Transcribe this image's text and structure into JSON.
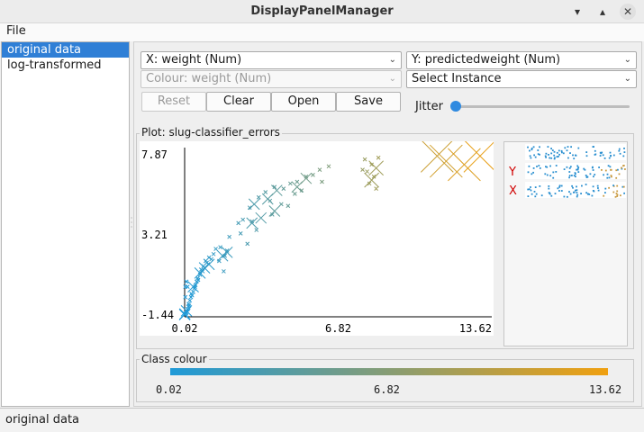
{
  "window": {
    "title": "DisplayPanelManager"
  },
  "menu": {
    "file": "File"
  },
  "datasets": [
    {
      "label": "original data",
      "selected": true
    },
    {
      "label": "log-transformed",
      "selected": false
    }
  ],
  "controls": {
    "x_axis": "X: weight (Num)",
    "y_axis": "Y: predictedweight (Num)",
    "colour": "Colour: weight (Num)",
    "instance": "Select Instance",
    "reset": "Reset",
    "clear": "Clear",
    "open": "Open",
    "save": "Save",
    "jitter": "Jitter",
    "jitter_value": 0
  },
  "plot": {
    "title": "Plot: slug-classifier_errors"
  },
  "chart_data": {
    "type": "scatter",
    "title": "Plot: slug-classifier_errors",
    "xlabel": "weight",
    "ylabel": "predictedweight",
    "xlim": [
      0.02,
      13.62
    ],
    "ylim": [
      -1.44,
      7.87
    ],
    "x_ticks": [
      "0.02",
      "6.82",
      "13.62"
    ],
    "y_ticks": [
      "7.87",
      "3.21",
      "-1.44"
    ],
    "colour_scale": {
      "low": "#1f9ad8",
      "high": "#f0a010"
    },
    "series": [
      {
        "marker": "x",
        "points": [
          [
            0.02,
            -1.41
          ],
          [
            0.05,
            -1.39
          ],
          [
            0.08,
            -1.35
          ],
          [
            0.1,
            -1.3
          ],
          [
            0.12,
            -1.22
          ],
          [
            0.15,
            -1.1
          ],
          [
            0.18,
            -0.95
          ],
          [
            0.2,
            -0.8
          ],
          [
            0.25,
            -0.6
          ],
          [
            0.3,
            -0.4
          ],
          [
            0.35,
            -0.3
          ],
          [
            0.4,
            -0.1
          ],
          [
            0.45,
            0.1
          ],
          [
            0.5,
            0.3
          ],
          [
            0.55,
            0.5
          ],
          [
            0.6,
            0.7
          ],
          [
            0.7,
            0.9
          ],
          [
            0.75,
            1.2
          ],
          [
            0.85,
            1.4
          ],
          [
            1.0,
            1.6
          ],
          [
            1.2,
            1.8
          ],
          [
            1.3,
            2.1
          ],
          [
            1.4,
            2.4
          ],
          [
            1.1,
            1.9
          ],
          [
            0.95,
            1.7
          ],
          [
            1.6,
            2.5
          ],
          [
            1.9,
            2.3
          ],
          [
            2.0,
            3.1
          ],
          [
            2.4,
            3.9
          ],
          [
            2.6,
            4.1
          ],
          [
            3.0,
            4.0
          ],
          [
            2.9,
            4.8
          ],
          [
            3.3,
            5.4
          ],
          [
            3.6,
            5.7
          ],
          [
            4.0,
            6.0
          ],
          [
            4.4,
            5.9
          ],
          [
            4.7,
            6.2
          ],
          [
            5.0,
            6.3
          ],
          [
            5.4,
            6.6
          ],
          [
            5.7,
            6.7
          ],
          [
            6.0,
            7.0
          ],
          [
            6.4,
            7.2
          ],
          [
            0.22,
            -0.9
          ],
          [
            0.32,
            -0.2
          ],
          [
            0.48,
            0.2
          ],
          [
            0.62,
            0.6
          ],
          [
            0.82,
            1.1
          ],
          [
            1.55,
            1.7
          ],
          [
            1.75,
            1.1
          ],
          [
            2.8,
            2.7
          ],
          [
            3.2,
            3.5
          ],
          [
            3.9,
            4.4
          ],
          [
            4.3,
            5.0
          ],
          [
            4.6,
            4.9
          ],
          [
            5.2,
            5.8
          ],
          [
            0.05,
            0.2
          ],
          [
            0.1,
            0.5
          ],
          [
            0.15,
            0.2
          ],
          [
            0.05,
            -0.4
          ],
          [
            1.8,
            2.0
          ],
          [
            2.5,
            3.3
          ],
          [
            3.8,
            5.2
          ],
          [
            4.9,
            5.6
          ],
          [
            6.1,
            6.3
          ],
          [
            8.0,
            7.6
          ],
          [
            8.3,
            7.3
          ],
          [
            8.6,
            7.7
          ],
          [
            8.1,
            6.9
          ],
          [
            8.4,
            6.6
          ],
          [
            8.2,
            6.2
          ],
          [
            8.5,
            5.9
          ],
          [
            7.9,
            7.0
          ]
        ]
      },
      {
        "marker": "x-large",
        "points": [
          [
            0.02,
            -1.42
          ],
          [
            0.03,
            -1.38
          ],
          [
            0.1,
            -1.2
          ],
          [
            0.4,
            0.2
          ],
          [
            0.7,
            1.0
          ],
          [
            0.9,
            1.3
          ],
          [
            1.1,
            1.5
          ],
          [
            1.7,
            2.0
          ],
          [
            1.9,
            2.2
          ],
          [
            3.0,
            3.9
          ],
          [
            3.4,
            4.2
          ],
          [
            3.1,
            5.0
          ],
          [
            3.7,
            5.3
          ],
          [
            4.1,
            5.8
          ],
          [
            4.0,
            4.6
          ],
          [
            5.0,
            6.0
          ],
          [
            5.4,
            6.5
          ],
          [
            8.3,
            6.4
          ],
          [
            8.5,
            7.1
          ],
          [
            11.2,
            7.8
          ],
          [
            11.6,
            7.5
          ],
          [
            12.4,
            7.3
          ],
          [
            13.1,
            7.8
          ]
        ]
      }
    ]
  },
  "minimap": {
    "y_label": "Y",
    "x_label": "X"
  },
  "colour_bar": {
    "title": "Class colour",
    "min": "0.02",
    "mid": "6.82",
    "max": "13.62",
    "low_color": "#1f9ad8",
    "high_color": "#f0a010"
  },
  "status": {
    "text": "original data"
  }
}
